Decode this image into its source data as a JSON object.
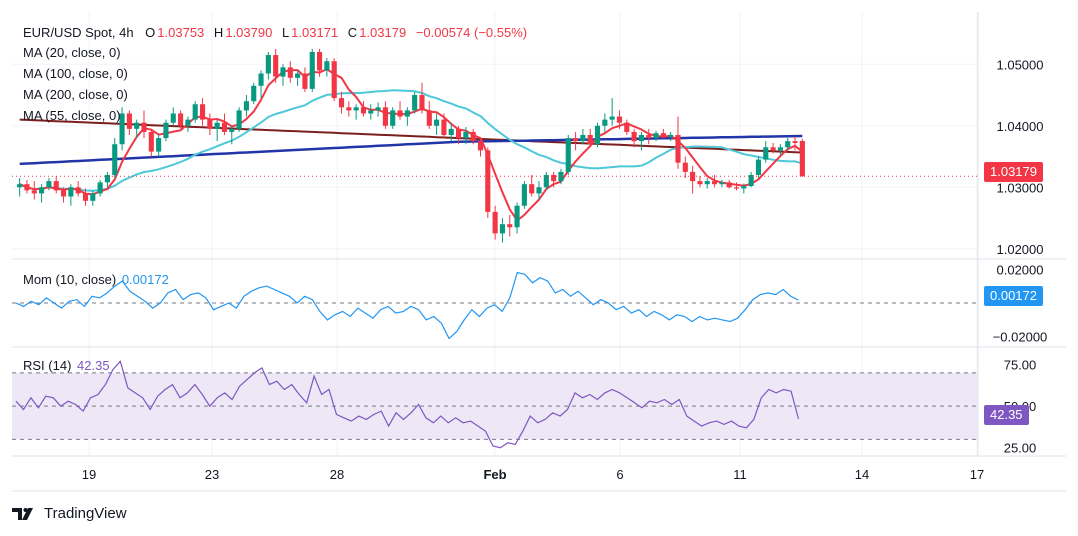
{
  "header": {
    "symbol": "EUR/USD Spot, 4h",
    "open_label": "O",
    "open": "1.03753",
    "high_label": "H",
    "high": "1.03790",
    "low_label": "L",
    "low": "1.03171",
    "close_label": "C",
    "close": "1.03179",
    "change": "−0.00574 (−0.55%)"
  },
  "ma_labels": [
    "MA (20, close, 0)",
    "MA (100, close, 0)",
    "MA (200, close, 0)",
    "MA (55, close, 0)"
  ],
  "momentum": {
    "label": "Mom (10, close)",
    "value": "0.00172"
  },
  "rsi": {
    "label": "RSI (14)",
    "value": "42.35"
  },
  "price_tag": "1.03179",
  "brand": "TradingView",
  "colors": {
    "up": "#089981",
    "down": "#f23645",
    "ma20": "#f23645",
    "ma100": "#4dc8d8",
    "ma200": "#2235a8",
    "ma55": "#7b1e1e",
    "mom": "#2196f3",
    "rsi": "#7e57c2",
    "rsi_band": "#ede7f6",
    "grid": "#f0f3fa"
  },
  "chart_data": [
    {
      "type": "candlestick",
      "title": "EUR/USD Spot, 4h",
      "x_ticks": [
        "19",
        "23",
        "28",
        "Feb",
        "6",
        "11",
        "14",
        "17"
      ],
      "y_ticks": [
        "1.02000",
        "1.03000",
        "1.04000",
        "1.05000"
      ],
      "ylim": [
        1.0185,
        1.0585
      ],
      "last_price": 1.03179,
      "candles": [
        [
          1.03,
          1.0315,
          1.0285,
          1.0305
        ],
        [
          1.0305,
          1.0312,
          1.029,
          1.0295
        ],
        [
          1.0295,
          1.031,
          1.028,
          1.029
        ],
        [
          1.029,
          1.0305,
          1.0275,
          1.03
        ],
        [
          1.03,
          1.0315,
          1.0295,
          1.031
        ],
        [
          1.031,
          1.0318,
          1.029,
          1.0295
        ],
        [
          1.0295,
          1.03,
          1.0275,
          1.0285
        ],
        [
          1.0285,
          1.0305,
          1.027,
          1.03
        ],
        [
          1.03,
          1.031,
          1.0285,
          1.029
        ],
        [
          1.029,
          1.0298,
          1.027,
          1.0278
        ],
        [
          1.0278,
          1.0295,
          1.027,
          1.029
        ],
        [
          1.029,
          1.0312,
          1.0285,
          1.0308
        ],
        [
          1.0308,
          1.0325,
          1.03,
          1.032
        ],
        [
          1.032,
          1.038,
          1.0315,
          1.037
        ],
        [
          1.037,
          1.043,
          1.036,
          1.042
        ],
        [
          1.042,
          1.0425,
          1.0385,
          1.0395
        ],
        [
          1.0395,
          1.041,
          1.038,
          1.0405
        ],
        [
          1.0405,
          1.0425,
          1.038,
          1.039
        ],
        [
          1.039,
          1.0395,
          1.035,
          1.0358
        ],
        [
          1.0358,
          1.0385,
          1.035,
          1.038
        ],
        [
          1.038,
          1.041,
          1.0375,
          1.0405
        ],
        [
          1.0405,
          1.043,
          1.04,
          1.042
        ],
        [
          1.042,
          1.0425,
          1.0395,
          1.04
        ],
        [
          1.04,
          1.0415,
          1.039,
          1.041
        ],
        [
          1.041,
          1.044,
          1.0405,
          1.0435
        ],
        [
          1.0435,
          1.0445,
          1.04,
          1.041
        ],
        [
          1.041,
          1.042,
          1.0385,
          1.0395
        ],
        [
          1.0395,
          1.041,
          1.0375,
          1.0405
        ],
        [
          1.0405,
          1.042,
          1.0385,
          1.039
        ],
        [
          1.039,
          1.04,
          1.037,
          1.0395
        ],
        [
          1.0395,
          1.043,
          1.039,
          1.0425
        ],
        [
          1.0425,
          1.045,
          1.0415,
          1.044
        ],
        [
          1.044,
          1.047,
          1.0435,
          1.0465
        ],
        [
          1.0465,
          1.049,
          1.0445,
          1.0485
        ],
        [
          1.0485,
          1.052,
          1.0475,
          1.0515
        ],
        [
          1.0515,
          1.0525,
          1.047,
          1.048
        ],
        [
          1.048,
          1.05,
          1.0465,
          1.0495
        ],
        [
          1.0495,
          1.0505,
          1.047,
          1.0478
        ],
        [
          1.0478,
          1.049,
          1.0465,
          1.0485
        ],
        [
          1.0485,
          1.0495,
          1.0455,
          1.046
        ],
        [
          1.046,
          1.0525,
          1.0455,
          1.052
        ],
        [
          1.052,
          1.0525,
          1.048,
          1.049
        ],
        [
          1.049,
          1.051,
          1.048,
          1.0505
        ],
        [
          1.0505,
          1.051,
          1.044,
          1.0445
        ],
        [
          1.0445,
          1.0455,
          1.042,
          1.043
        ],
        [
          1.043,
          1.044,
          1.0415,
          1.0425
        ],
        [
          1.0425,
          1.0435,
          1.041,
          1.043
        ],
        [
          1.043,
          1.044,
          1.0415,
          1.042
        ],
        [
          1.042,
          1.0435,
          1.041,
          1.0425
        ],
        [
          1.0425,
          1.0438,
          1.0415,
          1.043
        ],
        [
          1.043,
          1.044,
          1.0395,
          1.04
        ],
        [
          1.04,
          1.043,
          1.0395,
          1.0425
        ],
        [
          1.0425,
          1.044,
          1.041,
          1.0415
        ],
        [
          1.0415,
          1.043,
          1.04,
          1.0425
        ],
        [
          1.0425,
          1.0455,
          1.042,
          1.045
        ],
        [
          1.045,
          1.047,
          1.042,
          1.0425
        ],
        [
          1.0425,
          1.044,
          1.0395,
          1.04
        ],
        [
          1.04,
          1.042,
          1.0385,
          1.041
        ],
        [
          1.041,
          1.042,
          1.038,
          1.0385
        ],
        [
          1.0385,
          1.0405,
          1.0375,
          1.0395
        ],
        [
          1.0395,
          1.04,
          1.037,
          1.038
        ],
        [
          1.038,
          1.0398,
          1.037,
          1.039
        ],
        [
          1.039,
          1.0395,
          1.037,
          1.0375
        ],
        [
          1.0375,
          1.038,
          1.035,
          1.036
        ],
        [
          1.036,
          1.0365,
          1.025,
          1.026
        ],
        [
          1.026,
          1.027,
          1.0215,
          1.0225
        ],
        [
          1.0225,
          1.025,
          1.021,
          1.024
        ],
        [
          1.024,
          1.0255,
          1.022,
          1.0235
        ],
        [
          1.0235,
          1.0275,
          1.0225,
          1.027
        ],
        [
          1.027,
          1.031,
          1.0265,
          1.0305
        ],
        [
          1.0305,
          1.032,
          1.0285,
          1.029
        ],
        [
          1.029,
          1.031,
          1.028,
          1.03
        ],
        [
          1.03,
          1.0325,
          1.0295,
          1.032
        ],
        [
          1.032,
          1.0325,
          1.03,
          1.031
        ],
        [
          1.031,
          1.033,
          1.0305,
          1.0325
        ],
        [
          1.0325,
          1.0385,
          1.032,
          1.038
        ],
        [
          1.038,
          1.039,
          1.036,
          1.0375
        ],
        [
          1.0375,
          1.0395,
          1.037,
          1.0385
        ],
        [
          1.0385,
          1.0395,
          1.0365,
          1.037
        ],
        [
          1.037,
          1.0405,
          1.0365,
          1.04
        ],
        [
          1.04,
          1.042,
          1.039,
          1.041
        ],
        [
          1.041,
          1.0445,
          1.04,
          1.0415
        ],
        [
          1.0415,
          1.0425,
          1.0395,
          1.0405
        ],
        [
          1.0405,
          1.041,
          1.0385,
          1.039
        ],
        [
          1.039,
          1.0395,
          1.0365,
          1.0375
        ],
        [
          1.0375,
          1.039,
          1.036,
          1.0385
        ],
        [
          1.0385,
          1.0395,
          1.037,
          1.038
        ],
        [
          1.038,
          1.0392,
          1.0375,
          1.0388
        ],
        [
          1.0388,
          1.0395,
          1.038,
          1.0382
        ],
        [
          1.0382,
          1.039,
          1.0375,
          1.0385
        ],
        [
          1.0385,
          1.0415,
          1.033,
          1.034
        ],
        [
          1.034,
          1.035,
          1.0315,
          1.0325
        ],
        [
          1.0325,
          1.0335,
          1.029,
          1.031
        ],
        [
          1.031,
          1.0318,
          1.03,
          1.0305
        ],
        [
          1.0305,
          1.0315,
          1.0298,
          1.031
        ],
        [
          1.031,
          1.032,
          1.03,
          1.0305
        ],
        [
          1.0305,
          1.0312,
          1.03,
          1.0308
        ],
        [
          1.0308,
          1.0312,
          1.0298,
          1.03
        ],
        [
          1.03,
          1.0308,
          1.0295,
          1.0298
        ],
        [
          1.0298,
          1.0306,
          1.029,
          1.0302
        ],
        [
          1.0302,
          1.0325,
          1.03,
          1.032
        ],
        [
          1.032,
          1.035,
          1.0315,
          1.0345
        ],
        [
          1.0345,
          1.0375,
          1.034,
          1.0365
        ],
        [
          1.0365,
          1.0372,
          1.0355,
          1.036
        ],
        [
          1.036,
          1.037,
          1.0352,
          1.0365
        ],
        [
          1.0365,
          1.038,
          1.036,
          1.0375
        ],
        [
          1.0375,
          1.0382,
          1.036,
          1.0372
        ],
        [
          1.03753,
          1.0379,
          1.03171,
          1.03179
        ]
      ]
    },
    {
      "type": "line",
      "title": "Mom (10, close)",
      "y_ticks": [
        "0.02000",
        "−0.02000"
      ],
      "ylim": [
        -0.0255,
        0.0255
      ],
      "last_value": 0.00172,
      "values": [
        0.0,
        -0.002,
        0.001,
        -0.001,
        0.003,
        0.0,
        -0.003,
        0.001,
        0.002,
        -0.002,
        0.004,
        0.003,
        0.006,
        0.01,
        0.013,
        0.007,
        0.004,
        0.001,
        -0.003,
        0.0,
        0.006,
        0.008,
        0.002,
        0.005,
        0.006,
        0.003,
        -0.004,
        -0.002,
        0.0,
        -0.003,
        0.004,
        0.007,
        0.009,
        0.01,
        0.008,
        0.006,
        0.004,
        0.0,
        0.004,
        0.002,
        -0.005,
        -0.01,
        -0.007,
        -0.005,
        -0.008,
        -0.003,
        -0.006,
        -0.009,
        -0.004,
        -0.002,
        -0.006,
        -0.005,
        -0.002,
        -0.004,
        -0.01,
        -0.008,
        -0.012,
        -0.021,
        -0.017,
        -0.01,
        -0.004,
        -0.008,
        -0.003,
        -0.001,
        -0.005,
        0.003,
        0.018,
        0.017,
        0.012,
        0.015,
        0.013,
        0.006,
        0.008,
        0.004,
        0.007,
        0.003,
        -0.001,
        0.002,
        0.0,
        -0.004,
        -0.002,
        -0.006,
        -0.004,
        -0.008,
        -0.005,
        -0.007,
        -0.01,
        -0.007,
        -0.008,
        -0.011,
        -0.008,
        -0.01,
        -0.009,
        -0.01,
        -0.011,
        -0.009,
        -0.004,
        0.002,
        0.005,
        0.006,
        0.005,
        0.008,
        0.004,
        0.00172
      ]
    },
    {
      "type": "line",
      "title": "RSI (14)",
      "y_ticks": [
        "75.00",
        "50.00",
        "25.00"
      ],
      "ylim": [
        20,
        85
      ],
      "band": [
        30,
        70
      ],
      "last_value": 42.35,
      "values": [
        53,
        48,
        55,
        49,
        56,
        55,
        50,
        53,
        51,
        47,
        55,
        57,
        63,
        72,
        77,
        61,
        58,
        55,
        48,
        56,
        60,
        63,
        55,
        58,
        63,
        57,
        50,
        55,
        58,
        54,
        62,
        66,
        70,
        73,
        63,
        65,
        60,
        63,
        57,
        52,
        68,
        57,
        60,
        45,
        43,
        41,
        44,
        42,
        45,
        47,
        38,
        46,
        42,
        46,
        51,
        43,
        40,
        44,
        40,
        43,
        40,
        41,
        38,
        35,
        26,
        25,
        28,
        27,
        35,
        44,
        40,
        42,
        46,
        44,
        48,
        58,
        55,
        57,
        54,
        58,
        60,
        58,
        55,
        52,
        49,
        53,
        52,
        54,
        51,
        54,
        44,
        41,
        38,
        40,
        41,
        39,
        41,
        38,
        37,
        42,
        55,
        60,
        58,
        60,
        59,
        42.35
      ]
    }
  ]
}
